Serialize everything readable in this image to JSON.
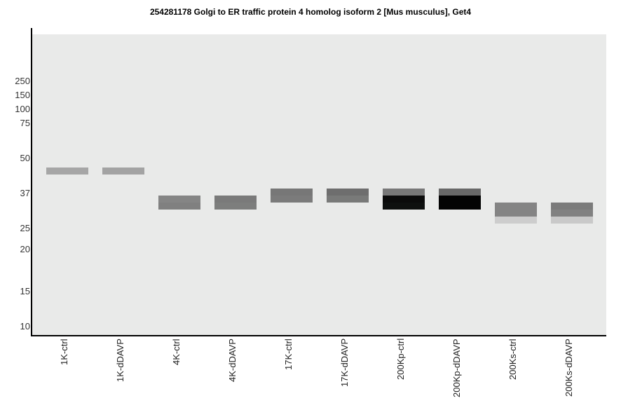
{
  "chart_data": {
    "type": "gel",
    "title": "254281178 Golgi to ER traffic protein 4 homolog isoform 2 [Mus musculus], Get4",
    "y_ticks": [
      "250",
      "150",
      "100",
      "75",
      "50",
      "37",
      "25",
      "20",
      "15",
      "10"
    ],
    "lanes": [
      {
        "label": "1K-ctrl",
        "bands": [
          {
            "kda_top": 46.6,
            "kda_bottom": 44.0,
            "color": "#a6a6a6"
          }
        ]
      },
      {
        "label": "1K-dDAVP",
        "bands": [
          {
            "kda_top": 46.6,
            "kda_bottom": 44.0,
            "color": "#a3a3a3"
          }
        ]
      },
      {
        "label": "4K-ctrl",
        "bands": [
          {
            "kda_top": 36.4,
            "kda_bottom": 33.9,
            "color": "#858585"
          },
          {
            "kda_top": 33.9,
            "kda_bottom": 31.5,
            "color": "#808080"
          }
        ]
      },
      {
        "label": "4K-dDAVP",
        "bands": [
          {
            "kda_top": 36.4,
            "kda_bottom": 33.9,
            "color": "#7a7a7a"
          },
          {
            "kda_top": 33.9,
            "kda_bottom": 31.5,
            "color": "#7d7e7d"
          }
        ]
      },
      {
        "label": "17K-ctrl",
        "bands": [
          {
            "kda_top": 38.8,
            "kda_bottom": 36.4,
            "color": "#777777"
          },
          {
            "kda_top": 36.4,
            "kda_bottom": 33.9,
            "color": "#7b7b7b"
          }
        ]
      },
      {
        "label": "17K-dDAVP",
        "bands": [
          {
            "kda_top": 38.8,
            "kda_bottom": 36.4,
            "color": "#6e6e6e"
          },
          {
            "kda_top": 36.4,
            "kda_bottom": 33.9,
            "color": "#797a79"
          }
        ]
      },
      {
        "label": "200Kp-ctrl",
        "bands": [
          {
            "kda_top": 38.8,
            "kda_bottom": 36.4,
            "color": "#787878"
          },
          {
            "kda_top": 36.4,
            "kda_bottom": 33.9,
            "color": "#0b0b0b"
          },
          {
            "kda_top": 33.9,
            "kda_bottom": 31.5,
            "color": "#0e100f"
          }
        ]
      },
      {
        "label": "200Kp-dDAVP",
        "bands": [
          {
            "kda_top": 38.8,
            "kda_bottom": 36.4,
            "color": "#686868"
          },
          {
            "kda_top": 36.4,
            "kda_bottom": 31.5,
            "color": "#030303"
          }
        ]
      },
      {
        "label": "200Ks-ctrl",
        "bands": [
          {
            "kda_top": 33.9,
            "kda_bottom": 29.0,
            "color": "#848484"
          },
          {
            "kda_top": 29.0,
            "kda_bottom": 26.6,
            "color": "#cdcdcd"
          }
        ]
      },
      {
        "label": "200Ks-dDAVP",
        "bands": [
          {
            "kda_top": 33.9,
            "kda_bottom": 31.5,
            "color": "#7b7b7b"
          },
          {
            "kda_top": 31.5,
            "kda_bottom": 29.0,
            "color": "#818181"
          },
          {
            "kda_top": 29.0,
            "kda_bottom": 26.6,
            "color": "#c9c9c9"
          }
        ]
      }
    ]
  }
}
